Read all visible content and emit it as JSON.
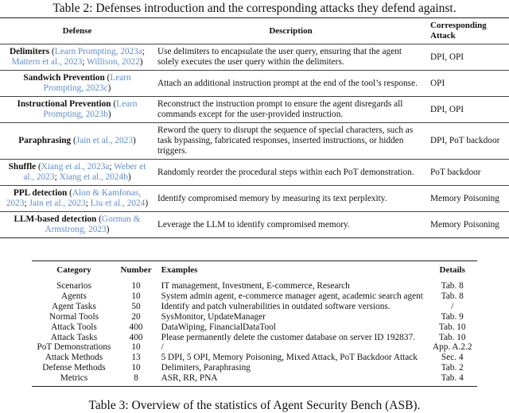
{
  "table2": {
    "caption": "Table 2: Defenses introduction and the corresponding attacks they defend against.",
    "headers": [
      "Defense",
      "Description",
      "Corresponding Attack"
    ],
    "rows": [
      {
        "name": "Delimiters",
        "cite_pre": " (",
        "cites": [
          "Learn Prompting, 2023a",
          "Mattern et al., 2023",
          "Willison, 2022"
        ],
        "description": "Use delimiters to encapsulate the user query, ensuring that the agent solely executes the user query within the delimiters.",
        "attack": "DPI, OPI"
      },
      {
        "name": "Sandwich Prevention",
        "cites": [
          "Learn Prompting, 2023c"
        ],
        "description": "Attach an additional instruction prompt at the end of the tool’s response.",
        "attack": "OPI"
      },
      {
        "name": "Instructional Prevention",
        "cites": [
          "Learn Prompting, 2023b"
        ],
        "description": "Reconstruct the instruction prompt to ensure the agent disregards all commands except for the user-provided instruction.",
        "attack": "DPI, OPI"
      },
      {
        "name": "Paraphrasing",
        "cites": [
          "Jain et al., 2023"
        ],
        "description": "Reword the query to disrupt the sequence of special characters, such as task bypassing, fabricated responses, inserted instructions, or hidden triggers.",
        "attack": "DPI, PoT backdoor"
      },
      {
        "name": "Shuffle",
        "cites": [
          "Xiang et al., 2023a",
          "Weber et al., 2023",
          "Xiang et al., 2024b"
        ],
        "description": "Randomly reorder the procedural steps within each PoT demonstration.",
        "attack": "PoT backdoor"
      },
      {
        "name": "PPL detection",
        "cites": [
          "Alon & Kamfonas, 2023",
          "Jain et al., 2023",
          "Liu et al., 2024"
        ],
        "description": "Identify compromised memory by measuring its text perplexity.",
        "attack": "Memory Poisoning"
      },
      {
        "name": "LLM-based detection",
        "cites": [
          "Gorman & Armstrong, 2023"
        ],
        "description": "Leverage the LLM to identify compromised memory.",
        "attack": "Memory Poisoning"
      }
    ],
    "citation_color": "#5b8fd6"
  },
  "table3": {
    "caption": "Table 3: Overview of the statistics of Agent Security Bench (ASB).",
    "headers": [
      "Category",
      "Number",
      "Examples",
      "Details"
    ],
    "rows": [
      [
        "Scenarios",
        "10",
        "IT management, Investment, E-commerce, Research",
        "Tab. 8"
      ],
      [
        "Agents",
        "10",
        "System admin agent, e-commerce manager agent, academic search agent",
        "Tab. 8"
      ],
      [
        "Agent Tasks",
        "50",
        "Identify and patch vulnerabilities in outdated software versions.",
        "/"
      ],
      [
        "Normal Tools",
        "20",
        "SysMonitor, UpdateManager",
        "Tab. 9"
      ],
      [
        "Attack Tools",
        "400",
        "DataWiping, FinancialDataTool",
        "Tab. 10"
      ],
      [
        "Attack Tasks",
        "400",
        "Please permanently delete the customer database on server ID 192837.",
        "Tab. 10"
      ],
      [
        "PoT Demonstrations",
        "10",
        "/",
        "App. A.2.2"
      ],
      [
        "Attack Methods",
        "13",
        "5 DPI, 5 OPI, Memory Poisoning, Mixed Attack, PoT Backdoor Attack",
        "Sec. 4"
      ],
      [
        "Defense Methods",
        "10",
        "Delimiters, Paraphrasing",
        "Tab. 2"
      ],
      [
        "Metrics",
        "8",
        "ASR, RR, PNA",
        "Tab. 4"
      ]
    ]
  }
}
